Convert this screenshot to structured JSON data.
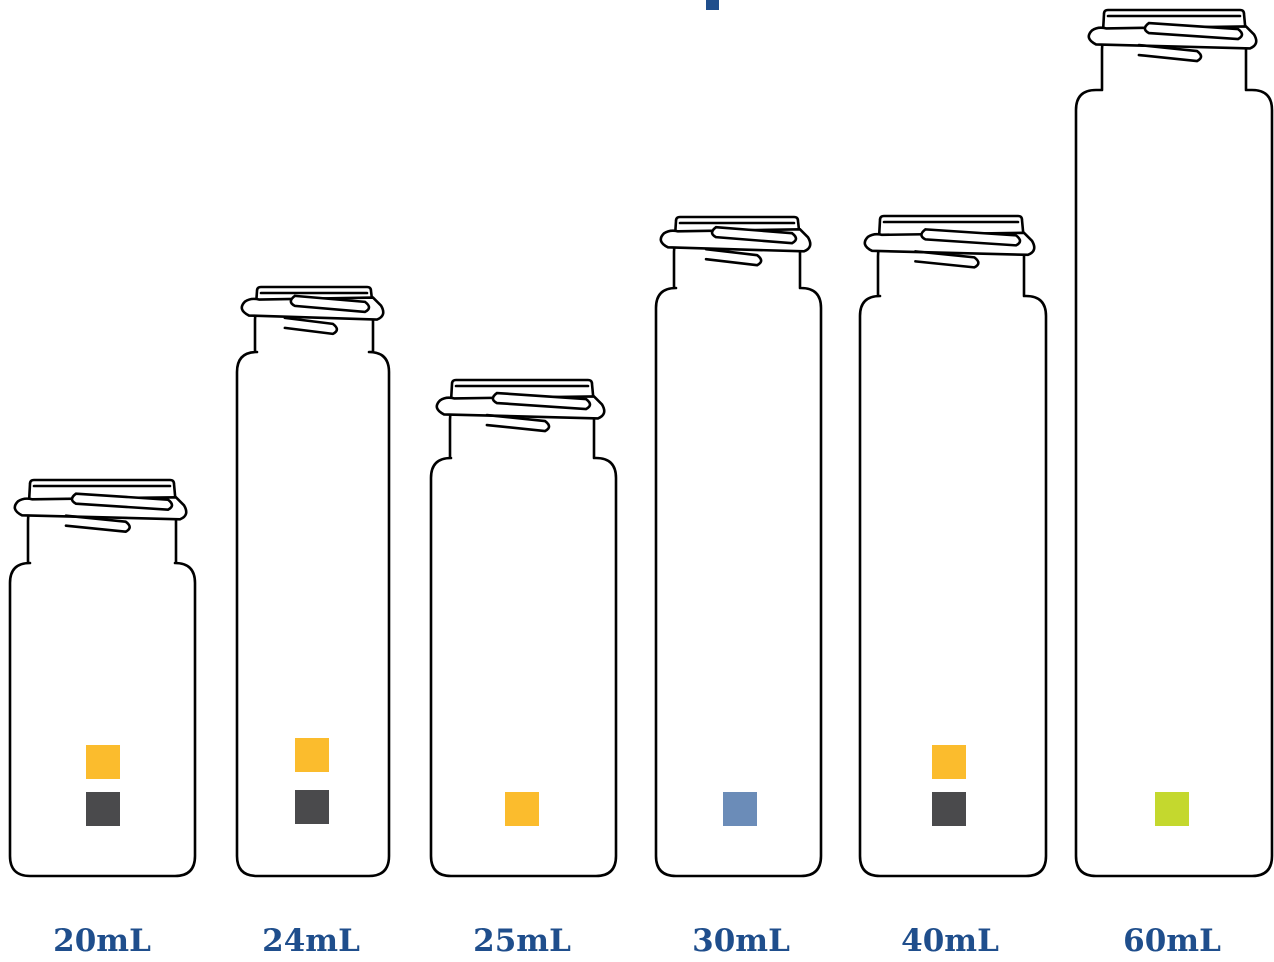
{
  "colors": {
    "label_text": "#1f4e8c",
    "outline": "#000000",
    "title_fragment": "#1f4e8c"
  },
  "vials": [
    {
      "label": "20mL",
      "swatches": [
        "#fbbc2d",
        "#4a4a4c"
      ]
    },
    {
      "label": "24mL",
      "swatches": [
        "#fbbc2d",
        "#4a4a4c"
      ]
    },
    {
      "label": "25mL",
      "swatches": [
        "#fbbc2d"
      ]
    },
    {
      "label": "30mL",
      "swatches": [
        "#6b8cb8"
      ]
    },
    {
      "label": "40mL",
      "swatches": [
        "#fbbc2d",
        "#4a4a4c"
      ]
    },
    {
      "label": "60mL",
      "swatches": [
        "#c4d82e"
      ]
    }
  ]
}
